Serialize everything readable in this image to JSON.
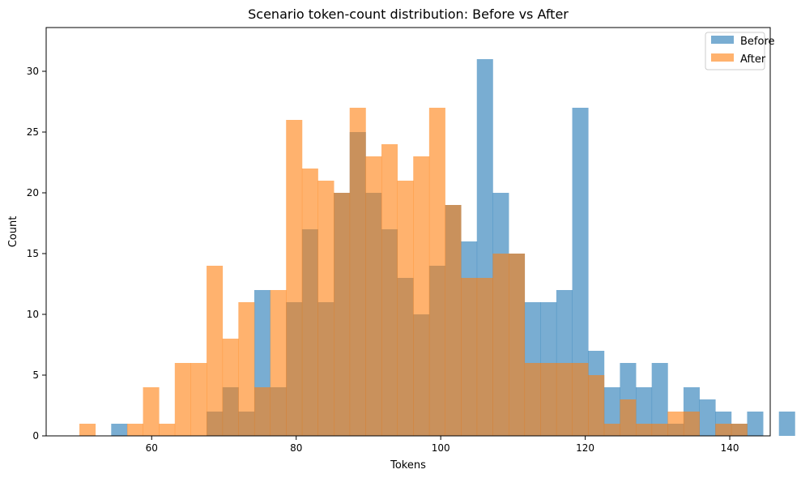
{
  "chart_data": {
    "type": "histogram",
    "title": "Scenario token-count distribution: Before vs After",
    "xlabel": "Tokens",
    "ylabel": "Count",
    "xlim": [
      45.4,
      145.6
    ],
    "ylim": [
      0,
      33.6
    ],
    "xticks": [
      60,
      80,
      100,
      120,
      140
    ],
    "yticks": [
      0,
      5,
      10,
      15,
      20,
      25,
      30
    ],
    "bin_start": 50,
    "bin_width": 2.2,
    "legend_position": "top-right",
    "series": [
      {
        "name": "Before",
        "color": "#1f77b4",
        "opacity": 0.6,
        "values": [
          0,
          0,
          1,
          0,
          0,
          0,
          0,
          0,
          2,
          4,
          2,
          12,
          4,
          11,
          17,
          11,
          20,
          25,
          20,
          17,
          13,
          10,
          14,
          19,
          16,
          31,
          20,
          15,
          11,
          11,
          12,
          27,
          7,
          4,
          6,
          4,
          6,
          1,
          4,
          3,
          2,
          1,
          2,
          0,
          2
        ]
      },
      {
        "name": "After",
        "color": "#ff7f0e",
        "opacity": 0.6,
        "values": [
          1,
          0,
          0,
          1,
          4,
          1,
          6,
          6,
          14,
          8,
          11,
          4,
          12,
          26,
          22,
          21,
          20,
          27,
          23,
          24,
          21,
          23,
          27,
          19,
          13,
          13,
          15,
          15,
          6,
          6,
          6,
          6,
          5,
          1,
          3,
          1,
          1,
          2,
          2,
          0,
          1,
          1,
          0,
          0,
          0
        ]
      }
    ]
  }
}
